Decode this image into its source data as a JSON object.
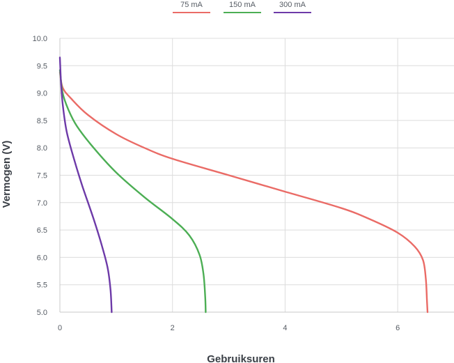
{
  "chart_data": {
    "type": "line",
    "title": "",
    "xlabel": "Gebruiksuren",
    "ylabel": "Vermogen (V)",
    "xlim": [
      0,
      7.0
    ],
    "ylim": [
      5.0,
      10.0
    ],
    "xticks": [
      0,
      2,
      4,
      6
    ],
    "yticks": [
      5.0,
      5.5,
      6.0,
      6.5,
      7.0,
      7.5,
      8.0,
      8.5,
      9.0,
      9.5,
      10.0
    ],
    "grid": true,
    "legend_position": "top-center",
    "series": [
      {
        "name": "75 mA",
        "color": "#ea6b66",
        "points": [
          [
            0.0,
            9.38
          ],
          [
            0.05,
            9.1
          ],
          [
            0.2,
            8.9
          ],
          [
            0.5,
            8.6
          ],
          [
            1.0,
            8.25
          ],
          [
            1.5,
            8.0
          ],
          [
            2.0,
            7.8
          ],
          [
            3.0,
            7.5
          ],
          [
            4.0,
            7.2
          ],
          [
            5.0,
            6.9
          ],
          [
            5.5,
            6.7
          ],
          [
            6.0,
            6.45
          ],
          [
            6.3,
            6.2
          ],
          [
            6.45,
            5.95
          ],
          [
            6.5,
            5.6
          ],
          [
            6.52,
            5.2
          ],
          [
            6.53,
            5.0
          ]
        ]
      },
      {
        "name": "150 mA",
        "color": "#4cae54",
        "points": [
          [
            0.0,
            9.42
          ],
          [
            0.05,
            9.0
          ],
          [
            0.15,
            8.7
          ],
          [
            0.3,
            8.4
          ],
          [
            0.6,
            8.0
          ],
          [
            1.0,
            7.55
          ],
          [
            1.5,
            7.1
          ],
          [
            2.0,
            6.7
          ],
          [
            2.3,
            6.4
          ],
          [
            2.48,
            6.05
          ],
          [
            2.55,
            5.7
          ],
          [
            2.58,
            5.3
          ],
          [
            2.59,
            5.0
          ]
        ]
      },
      {
        "name": "300 mA",
        "color": "#6d3aa8",
        "points": [
          [
            0.0,
            9.65
          ],
          [
            0.02,
            9.2
          ],
          [
            0.05,
            8.8
          ],
          [
            0.12,
            8.3
          ],
          [
            0.25,
            7.8
          ],
          [
            0.4,
            7.3
          ],
          [
            0.6,
            6.7
          ],
          [
            0.75,
            6.2
          ],
          [
            0.85,
            5.8
          ],
          [
            0.9,
            5.4
          ],
          [
            0.92,
            5.0
          ]
        ]
      }
    ]
  }
}
